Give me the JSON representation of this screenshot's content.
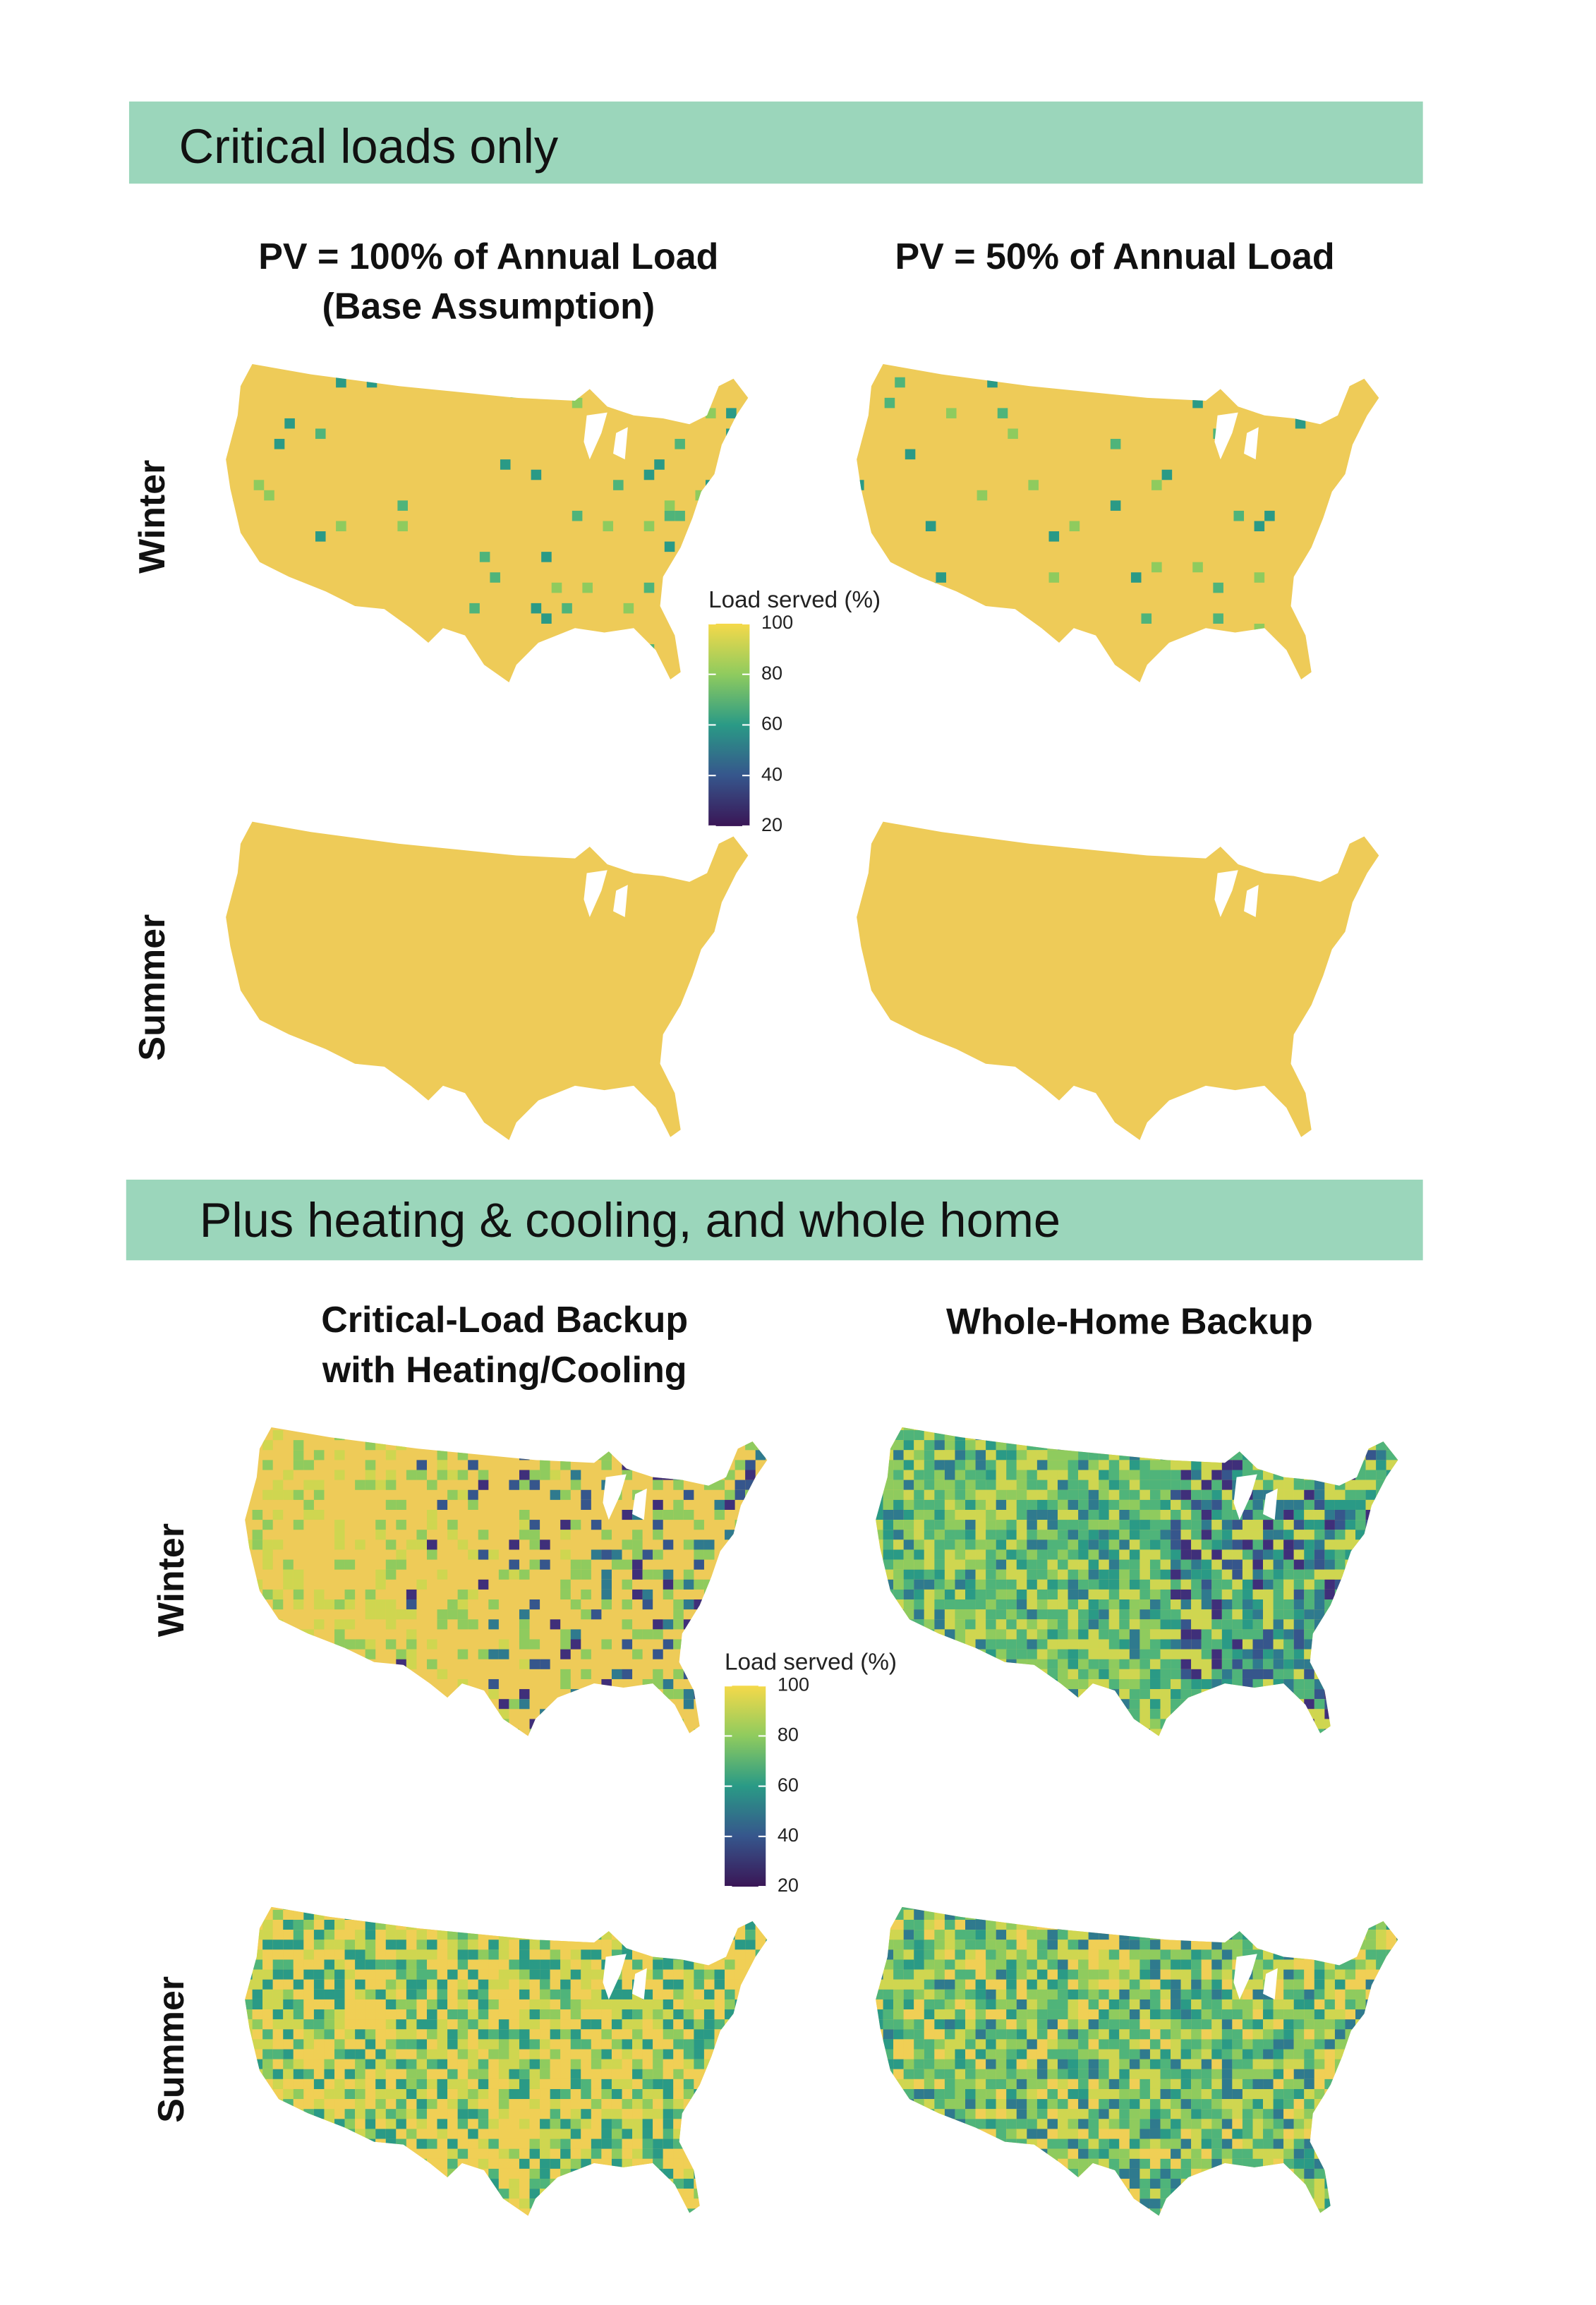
{
  "panels": [
    {
      "heading": "Critical loads only",
      "columns": [
        [
          "PV = 100% of Annual Load",
          "(Base Assumption)"
        ],
        [
          "PV = 50% of Annual Load"
        ]
      ],
      "rows": [
        "Winter",
        "Summer"
      ],
      "legend": {
        "title": "Load served (%)",
        "range": [
          20,
          100
        ],
        "ticks": [
          100,
          80,
          60,
          40,
          20
        ]
      }
    },
    {
      "heading": "Plus heating & cooling, and whole home",
      "columns": [
        [
          "Critical-Load Backup",
          "with Heating/Cooling"
        ],
        [
          "Whole-Home Backup"
        ]
      ],
      "rows": [
        "Winter",
        "Summer"
      ],
      "legend": {
        "title": "Load served (%)",
        "range": [
          20,
          100
        ],
        "ticks": [
          100,
          80,
          60,
          40,
          20
        ]
      }
    }
  ]
}
